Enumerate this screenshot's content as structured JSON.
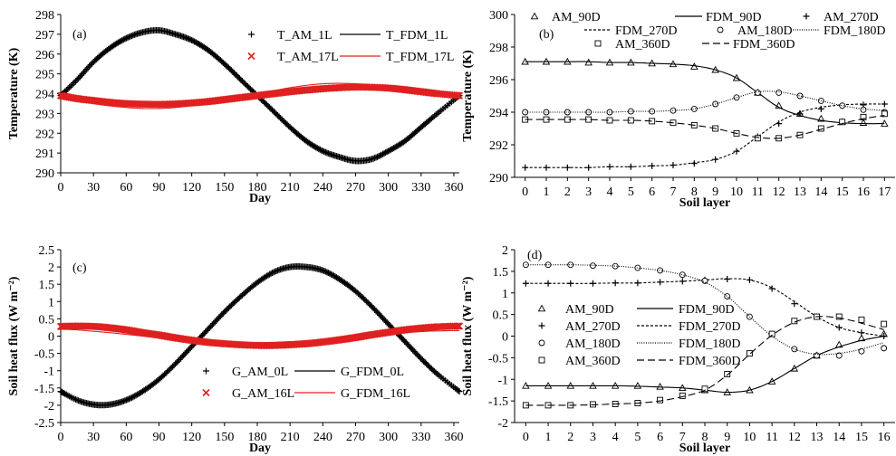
{
  "chart_data": [
    {
      "type": "line",
      "panel_label": "(a)",
      "xlabel": "Day",
      "ylabel": "Temperature (K)",
      "xlim": [
        0,
        365
      ],
      "ylim": [
        290,
        298
      ],
      "xticks": [
        0,
        30,
        60,
        90,
        120,
        150,
        180,
        210,
        240,
        270,
        300,
        330,
        360
      ],
      "yticks": [
        290,
        291,
        292,
        293,
        294,
        295,
        296,
        297,
        298
      ],
      "x": [
        0,
        15,
        30,
        45,
        60,
        75,
        90,
        105,
        120,
        135,
        150,
        165,
        180,
        195,
        210,
        225,
        240,
        255,
        270,
        285,
        300,
        315,
        330,
        345,
        365
      ],
      "legend_position": "top-right",
      "series": [
        {
          "name": "T_AM_1L",
          "style": "markers",
          "marker": "plus",
          "color": "#000000",
          "values": [
            293.9,
            294.7,
            295.6,
            296.3,
            296.8,
            297.1,
            297.2,
            297.0,
            296.7,
            296.2,
            295.5,
            294.7,
            293.9,
            293.1,
            292.3,
            291.6,
            291.1,
            290.8,
            290.6,
            290.7,
            291.1,
            291.6,
            292.3,
            293.0,
            293.9
          ]
        },
        {
          "name": "T_FDM_1L",
          "style": "line",
          "color": "#000000",
          "values": [
            293.9,
            294.7,
            295.6,
            296.3,
            296.8,
            297.1,
            297.2,
            297.0,
            296.7,
            296.2,
            295.5,
            294.7,
            293.9,
            293.1,
            292.3,
            291.6,
            291.1,
            290.8,
            290.6,
            290.7,
            291.1,
            291.6,
            292.3,
            293.0,
            293.9
          ]
        },
        {
          "name": "T_AM_17L",
          "style": "markers",
          "marker": "x",
          "color": "#e02020",
          "values": [
            293.9,
            293.75,
            293.65,
            293.56,
            293.5,
            293.47,
            293.46,
            293.48,
            293.53,
            293.6,
            293.7,
            293.8,
            293.9,
            294.0,
            294.1,
            294.18,
            294.25,
            294.3,
            294.33,
            294.32,
            294.28,
            294.2,
            294.1,
            294.0,
            293.9
          ]
        },
        {
          "name": "T_FDM_17L",
          "style": "line",
          "color": "#e02020",
          "values": [
            293.9,
            293.7,
            293.5,
            293.38,
            293.3,
            293.25,
            293.25,
            293.3,
            293.4,
            293.55,
            293.7,
            293.85,
            294.0,
            294.15,
            294.3,
            294.42,
            294.5,
            294.52,
            294.5,
            294.45,
            294.35,
            294.2,
            294.05,
            293.95,
            293.8
          ]
        }
      ]
    },
    {
      "type": "line",
      "panel_label": "(b)",
      "xlabel": "Soil layer",
      "ylabel": "Temperature (K)",
      "xlim": [
        -0.5,
        17.5
      ],
      "ylim": [
        290,
        300
      ],
      "xticks": [
        0,
        1,
        2,
        3,
        4,
        5,
        6,
        7,
        8,
        9,
        10,
        11,
        12,
        13,
        14,
        15,
        16,
        17
      ],
      "yticks": [
        290,
        292,
        294,
        296,
        298,
        300
      ],
      "x": [
        0,
        1,
        2,
        3,
        4,
        5,
        6,
        7,
        8,
        9,
        10,
        11,
        12,
        13,
        14,
        15,
        16,
        17
      ],
      "legend_position": "top",
      "series": [
        {
          "name": "AM_90D",
          "style": "markers",
          "marker": "triangle",
          "color": "#000000",
          "values": [
            297.1,
            297.1,
            297.1,
            297.05,
            297.05,
            297.05,
            297.0,
            296.95,
            296.8,
            296.6,
            296.1,
            295.2,
            294.4,
            293.9,
            293.6,
            293.4,
            293.35,
            293.3
          ]
        },
        {
          "name": "FDM_90D",
          "style": "solid",
          "color": "#000000",
          "values": [
            297.1,
            297.1,
            297.1,
            297.1,
            297.05,
            297.05,
            297.0,
            296.95,
            296.85,
            296.6,
            296.1,
            295.2,
            294.3,
            293.8,
            293.5,
            293.35,
            293.3,
            293.3
          ]
        },
        {
          "name": "AM_270D",
          "style": "markers",
          "marker": "plus",
          "color": "#000000",
          "values": [
            290.6,
            290.6,
            290.6,
            290.6,
            290.65,
            290.65,
            290.7,
            290.75,
            290.85,
            291.1,
            291.6,
            292.5,
            293.3,
            293.9,
            294.2,
            294.4,
            294.45,
            294.5
          ]
        },
        {
          "name": "FDM_270D",
          "style": "dashed-short",
          "color": "#000000",
          "values": [
            290.6,
            290.6,
            290.6,
            290.6,
            290.65,
            290.65,
            290.7,
            290.75,
            290.9,
            291.1,
            291.6,
            292.5,
            293.4,
            294.0,
            294.3,
            294.45,
            294.5,
            294.5
          ]
        },
        {
          "name": "AM_180D",
          "style": "markers",
          "marker": "circle",
          "color": "#000000",
          "values": [
            294.0,
            294.0,
            294.0,
            294.0,
            294.0,
            294.05,
            294.05,
            294.1,
            294.2,
            294.5,
            294.9,
            295.2,
            295.2,
            295.0,
            294.7,
            294.4,
            294.15,
            294.0
          ]
        },
        {
          "name": "FDM_180D",
          "style": "dotted",
          "color": "#000000",
          "values": [
            294.0,
            294.0,
            294.0,
            294.0,
            294.0,
            294.05,
            294.05,
            294.1,
            294.2,
            294.5,
            294.9,
            295.25,
            295.25,
            295.0,
            294.7,
            294.4,
            294.2,
            294.1
          ]
        },
        {
          "name": "AM_360D",
          "style": "markers",
          "marker": "square",
          "color": "#000000",
          "values": [
            293.55,
            293.55,
            293.55,
            293.55,
            293.5,
            293.5,
            293.45,
            293.35,
            293.2,
            293.0,
            292.7,
            292.4,
            292.4,
            292.6,
            293.0,
            293.4,
            293.7,
            293.9
          ]
        },
        {
          "name": "FDM_360D",
          "style": "dashed-long",
          "color": "#000000",
          "values": [
            293.55,
            293.55,
            293.55,
            293.55,
            293.5,
            293.5,
            293.45,
            293.35,
            293.2,
            293.0,
            292.7,
            292.45,
            292.4,
            292.6,
            292.95,
            293.3,
            293.6,
            293.8
          ]
        }
      ]
    },
    {
      "type": "line",
      "panel_label": "(c)",
      "xlabel": "Day",
      "ylabel": "Soil heat flux (W m⁻²)",
      "xlim": [
        0,
        365
      ],
      "ylim": [
        -2.5,
        2.5
      ],
      "xticks": [
        0,
        30,
        60,
        90,
        120,
        150,
        180,
        210,
        240,
        270,
        300,
        330,
        360
      ],
      "yticks": [
        -2.5,
        -2,
        -1.5,
        -1,
        -0.5,
        0,
        0.5,
        1,
        1.5,
        2,
        2.5
      ],
      "x": [
        0,
        15,
        30,
        45,
        60,
        75,
        90,
        105,
        120,
        135,
        150,
        165,
        180,
        195,
        210,
        225,
        240,
        255,
        270,
        285,
        300,
        315,
        330,
        345,
        365
      ],
      "legend_position": "bottom-right",
      "series": [
        {
          "name": "G_AM_0L",
          "style": "markers",
          "marker": "plus",
          "color": "#000000",
          "values": [
            -1.6,
            -1.85,
            -1.98,
            -1.98,
            -1.85,
            -1.6,
            -1.25,
            -0.8,
            -0.3,
            0.2,
            0.7,
            1.15,
            1.55,
            1.85,
            2.0,
            2.0,
            1.9,
            1.65,
            1.3,
            0.85,
            0.35,
            -0.15,
            -0.65,
            -1.1,
            -1.6
          ]
        },
        {
          "name": "G_FDM_0L",
          "style": "line",
          "color": "#000000",
          "values": [
            -1.6,
            -1.85,
            -1.98,
            -1.98,
            -1.85,
            -1.6,
            -1.25,
            -0.8,
            -0.3,
            0.2,
            0.7,
            1.15,
            1.55,
            1.85,
            2.0,
            2.0,
            1.9,
            1.65,
            1.3,
            0.85,
            0.35,
            -0.15,
            -0.65,
            -1.1,
            -1.6
          ]
        },
        {
          "name": "G_AM_16L",
          "style": "markers",
          "marker": "x",
          "color": "#e02020",
          "values": [
            0.28,
            0.29,
            0.28,
            0.24,
            0.18,
            0.1,
            0.03,
            -0.05,
            -0.12,
            -0.18,
            -0.22,
            -0.25,
            -0.27,
            -0.27,
            -0.25,
            -0.22,
            -0.17,
            -0.11,
            -0.04,
            0.04,
            0.11,
            0.18,
            0.23,
            0.27,
            0.29
          ]
        },
        {
          "name": "G_FDM_16L",
          "style": "line",
          "color": "#e02020",
          "values": [
            0.2,
            0.18,
            0.14,
            0.1,
            0.05,
            0.0,
            -0.05,
            -0.09,
            -0.13,
            -0.16,
            -0.18,
            -0.19,
            -0.19,
            -0.18,
            -0.16,
            -0.13,
            -0.1,
            -0.06,
            -0.02,
            0.02,
            0.06,
            0.1,
            0.13,
            0.15,
            0.16
          ]
        }
      ]
    },
    {
      "type": "line",
      "panel_label": "(d)",
      "xlabel": "Soil layer",
      "ylabel": "Soil heat flux (W m⁻²)",
      "xlim": [
        -0.5,
        16.5
      ],
      "ylim": [
        -2,
        2
      ],
      "xticks": [
        0,
        1,
        2,
        3,
        4,
        5,
        6,
        7,
        8,
        9,
        10,
        11,
        12,
        13,
        14,
        15,
        16
      ],
      "yticks": [
        -2,
        -1.5,
        -1,
        -0.5,
        0,
        0.5,
        1,
        1.5,
        2
      ],
      "x": [
        0,
        1,
        2,
        3,
        4,
        5,
        6,
        7,
        8,
        9,
        10,
        11,
        12,
        13,
        14,
        15,
        16
      ],
      "legend_position": "center-left",
      "series": [
        {
          "name": "AM_90D",
          "style": "markers",
          "marker": "triangle",
          "color": "#000000",
          "values": [
            -1.15,
            -1.15,
            -1.15,
            -1.15,
            -1.15,
            -1.15,
            -1.17,
            -1.2,
            -1.25,
            -1.3,
            -1.25,
            -1.05,
            -0.75,
            -0.45,
            -0.2,
            -0.05,
            0.05
          ]
        },
        {
          "name": "FDM_90D",
          "style": "solid",
          "color": "#000000",
          "values": [
            -1.15,
            -1.15,
            -1.15,
            -1.15,
            -1.15,
            -1.16,
            -1.18,
            -1.2,
            -1.25,
            -1.3,
            -1.25,
            -1.05,
            -0.75,
            -0.45,
            -0.25,
            -0.1,
            0.0
          ]
        },
        {
          "name": "AM_270D",
          "style": "markers",
          "marker": "plus",
          "color": "#000000",
          "values": [
            1.22,
            1.22,
            1.22,
            1.22,
            1.23,
            1.23,
            1.25,
            1.27,
            1.3,
            1.32,
            1.3,
            1.1,
            0.75,
            0.45,
            0.2,
            0.08,
            0.0
          ]
        },
        {
          "name": "FDM_270D",
          "style": "dashed-short",
          "color": "#000000",
          "values": [
            1.22,
            1.22,
            1.22,
            1.22,
            1.23,
            1.23,
            1.25,
            1.27,
            1.3,
            1.33,
            1.3,
            1.12,
            0.8,
            0.45,
            0.2,
            0.08,
            0.0
          ]
        },
        {
          "name": "AM_180D",
          "style": "markers",
          "marker": "circle",
          "color": "#000000",
          "values": [
            1.65,
            1.65,
            1.65,
            1.63,
            1.62,
            1.58,
            1.52,
            1.42,
            1.28,
            0.92,
            0.45,
            0.05,
            -0.3,
            -0.45,
            -0.45,
            -0.35,
            -0.28
          ]
        },
        {
          "name": "FDM_180D",
          "style": "dotted",
          "color": "#000000",
          "values": [
            1.65,
            1.65,
            1.65,
            1.64,
            1.62,
            1.58,
            1.52,
            1.42,
            1.25,
            0.92,
            0.45,
            0.0,
            -0.3,
            -0.42,
            -0.4,
            -0.3,
            -0.15
          ]
        },
        {
          "name": "AM_360D",
          "style": "markers",
          "marker": "square",
          "color": "#000000",
          "values": [
            -1.6,
            -1.6,
            -1.6,
            -1.58,
            -1.57,
            -1.55,
            -1.48,
            -1.38,
            -1.22,
            -0.88,
            -0.4,
            0.05,
            0.35,
            0.45,
            0.45,
            0.38,
            0.28
          ]
        },
        {
          "name": "FDM_360D",
          "style": "dashed-long",
          "color": "#000000",
          "values": [
            -1.6,
            -1.6,
            -1.6,
            -1.59,
            -1.57,
            -1.55,
            -1.5,
            -1.4,
            -1.25,
            -0.9,
            -0.42,
            0.02,
            0.32,
            0.45,
            0.42,
            0.3,
            0.15
          ]
        }
      ]
    }
  ]
}
